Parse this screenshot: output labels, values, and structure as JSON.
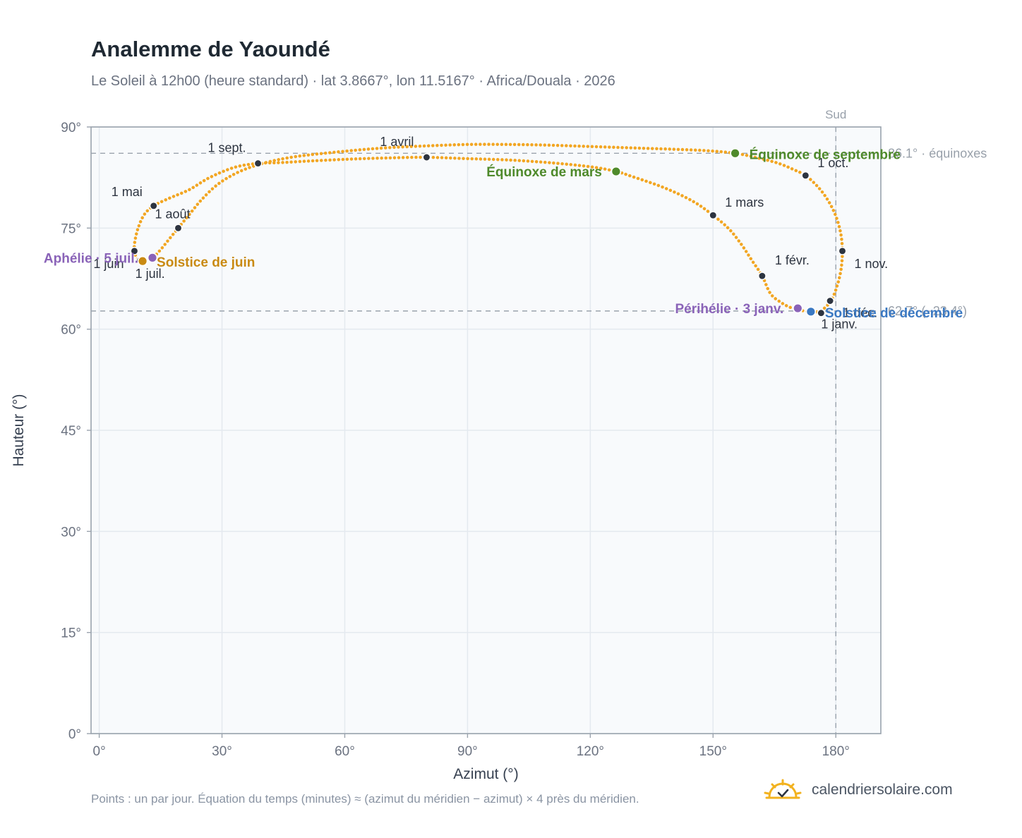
{
  "header": {
    "title": "Analemme de Yaoundé",
    "subtitle": "Le Soleil à 12h00 (heure standard) · lat 3.8667°, lon 11.5167° · Africa/Douala · 2026"
  },
  "footer": {
    "note": "Points : un par jour. Équation du temps (minutes) ≈ (azimut du méridien − azimut) × 4 près du méridien.",
    "brand": "calendriersolaire.com"
  },
  "chart_data": {
    "type": "scatter",
    "xlabel": "Azimut (°)",
    "ylabel": "Hauteur (°)",
    "xlim": [
      -2,
      191
    ],
    "ylim": [
      0,
      90
    ],
    "x_ticks": [
      0,
      30,
      60,
      90,
      120,
      150,
      180
    ],
    "x_tick_labels": [
      "0°",
      "30°",
      "60°",
      "90°",
      "120°",
      "150°",
      "180°"
    ],
    "y_ticks": [
      0,
      15,
      30,
      45,
      60,
      75,
      90
    ],
    "y_tick_labels": [
      "0°",
      "15°",
      "30°",
      "45°",
      "60°",
      "75°",
      "90°"
    ],
    "grid": true,
    "south_line": {
      "x": 180,
      "label": "Sud"
    },
    "reference_lines": [
      {
        "y": 86.1,
        "label": "86.1° · équinoxes"
      },
      {
        "y": 62.7,
        "label": "62.7° (−23.4°)"
      }
    ],
    "path": [
      {
        "x": 174.0,
        "y": 62.5
      },
      {
        "x": 171.5,
        "y": 62.8
      },
      {
        "x": 169.0,
        "y": 63.2
      },
      {
        "x": 166.5,
        "y": 64.0
      },
      {
        "x": 164.0,
        "y": 65.3
      },
      {
        "x": 162.0,
        "y": 67.9
      },
      {
        "x": 159.5,
        "y": 70.2
      },
      {
        "x": 157.0,
        "y": 72.5
      },
      {
        "x": 154.0,
        "y": 74.8
      },
      {
        "x": 150.0,
        "y": 76.9
      },
      {
        "x": 145.0,
        "y": 79.0
      },
      {
        "x": 138.0,
        "y": 81.0
      },
      {
        "x": 130.0,
        "y": 82.7
      },
      {
        "x": 126.3,
        "y": 83.4
      },
      {
        "x": 120.0,
        "y": 84.1
      },
      {
        "x": 110.0,
        "y": 84.7
      },
      {
        "x": 100.0,
        "y": 85.1
      },
      {
        "x": 90.0,
        "y": 85.3
      },
      {
        "x": 80.0,
        "y": 85.5
      },
      {
        "x": 70.0,
        "y": 85.4
      },
      {
        "x": 60.0,
        "y": 85.2
      },
      {
        "x": 50.0,
        "y": 84.9
      },
      {
        "x": 44.0,
        "y": 84.7
      },
      {
        "x": 38.8,
        "y": 84.6
      },
      {
        "x": 33.0,
        "y": 84.0
      },
      {
        "x": 27.0,
        "y": 82.5
      },
      {
        "x": 22.0,
        "y": 80.7
      },
      {
        "x": 17.0,
        "y": 79.4
      },
      {
        "x": 13.3,
        "y": 78.3
      },
      {
        "x": 11.0,
        "y": 77.0
      },
      {
        "x": 9.5,
        "y": 75.0
      },
      {
        "x": 8.7,
        "y": 73.0
      },
      {
        "x": 8.6,
        "y": 71.6
      },
      {
        "x": 9.2,
        "y": 70.6
      },
      {
        "x": 10.6,
        "y": 70.1
      },
      {
        "x": 13.0,
        "y": 70.6
      },
      {
        "x": 15.0,
        "y": 71.8
      },
      {
        "x": 17.0,
        "y": 73.3
      },
      {
        "x": 19.3,
        "y": 75.0
      },
      {
        "x": 22.0,
        "y": 77.0
      },
      {
        "x": 25.0,
        "y": 79.2
      },
      {
        "x": 29.0,
        "y": 81.5
      },
      {
        "x": 34.0,
        "y": 83.3
      },
      {
        "x": 40.0,
        "y": 84.6
      },
      {
        "x": 48.0,
        "y": 85.6
      },
      {
        "x": 60.0,
        "y": 86.4
      },
      {
        "x": 70.0,
        "y": 86.9
      },
      {
        "x": 80.0,
        "y": 87.2
      },
      {
        "x": 90.0,
        "y": 87.4
      },
      {
        "x": 100.0,
        "y": 87.4
      },
      {
        "x": 110.0,
        "y": 87.3
      },
      {
        "x": 120.0,
        "y": 87.1
      },
      {
        "x": 130.0,
        "y": 86.9
      },
      {
        "x": 140.0,
        "y": 86.7
      },
      {
        "x": 148.0,
        "y": 86.5
      },
      {
        "x": 155.4,
        "y": 86.1
      },
      {
        "x": 161.0,
        "y": 85.4
      },
      {
        "x": 166.0,
        "y": 84.6
      },
      {
        "x": 170.0,
        "y": 83.6
      },
      {
        "x": 172.6,
        "y": 82.8
      },
      {
        "x": 175.5,
        "y": 81.2
      },
      {
        "x": 178.0,
        "y": 79.2
      },
      {
        "x": 180.0,
        "y": 76.8
      },
      {
        "x": 181.2,
        "y": 74.2
      },
      {
        "x": 181.6,
        "y": 71.6
      },
      {
        "x": 181.3,
        "y": 69.0
      },
      {
        "x": 180.4,
        "y": 66.6
      },
      {
        "x": 178.9,
        "y": 64.3
      },
      {
        "x": 176.5,
        "y": 62.8
      },
      {
        "x": 174.0,
        "y": 62.5
      }
    ],
    "month_markers": [
      {
        "label": "1 janv.",
        "x": 176.4,
        "y": 62.4
      },
      {
        "label": "1 févr.",
        "x": 162.0,
        "y": 67.9
      },
      {
        "label": "1 mars",
        "x": 150.0,
        "y": 76.9
      },
      {
        "label": "1 avril",
        "x": 80.0,
        "y": 85.5
      },
      {
        "label": "1 mai",
        "x": 13.3,
        "y": 78.3
      },
      {
        "label": "1 juin",
        "x": 8.6,
        "y": 71.6
      },
      {
        "label": "1 juil.",
        "x": 10.0,
        "y": 70.2
      },
      {
        "label": "1 août",
        "x": 19.3,
        "y": 75.0
      },
      {
        "label": "1 sept.",
        "x": 38.8,
        "y": 84.6
      },
      {
        "label": "1 oct.",
        "x": 172.6,
        "y": 82.8
      },
      {
        "label": "1 nov.",
        "x": 181.6,
        "y": 71.6
      },
      {
        "label": "1 déc.",
        "x": 178.6,
        "y": 64.2
      }
    ],
    "events": [
      {
        "label": "Équinoxe de mars",
        "x": 126.3,
        "y": 83.4,
        "color": "#4f8a2b"
      },
      {
        "label": "Équinoxe de septembre",
        "x": 155.4,
        "y": 86.1,
        "color": "#4f8a2b"
      },
      {
        "label": "Solstice de juin",
        "x": 10.6,
        "y": 70.1,
        "color": "#c98a12"
      },
      {
        "label": "Solstice de décembre",
        "x": 173.9,
        "y": 62.6,
        "color": "#3a78c2"
      },
      {
        "label": "Aphélie · 5 juil.",
        "x": 13.0,
        "y": 70.6,
        "color": "#8a63b8"
      },
      {
        "label": "Périhélie · 3 janv.",
        "x": 170.7,
        "y": 63.1,
        "color": "#8a63b8"
      }
    ],
    "colors": {
      "curve": "#f2a623",
      "marker": "#2d3440",
      "grid": "#e4e9ef",
      "plot_bg": "#f8fafc"
    }
  }
}
